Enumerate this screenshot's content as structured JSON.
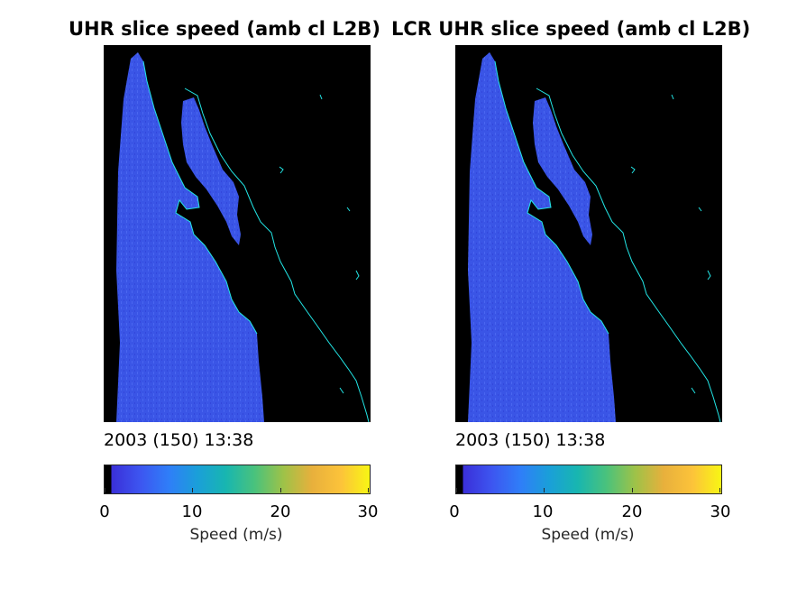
{
  "panels": [
    {
      "title": "UHR slice speed (amb cl L2B)",
      "timestamp": "2003 (150) 13:38",
      "colorbar": {
        "label": "Speed (m/s)",
        "ticks": [
          "0",
          "10",
          "20",
          "30"
        ]
      }
    },
    {
      "title": "LCR UHR slice speed (amb cl L2B)",
      "timestamp": "2003 (150) 13:38",
      "colorbar": {
        "label": "Speed (m/s)",
        "ticks": [
          "0",
          "10",
          "20",
          "30"
        ]
      }
    }
  ],
  "colors": {
    "background": "#000000",
    "ocean_speed": "#3a55e6",
    "coastline": "#22e6e6",
    "colormap": [
      "#000000",
      "#3a2fd8",
      "#3d55f0",
      "#2f7ef8",
      "#1a9fd9",
      "#18b6b0",
      "#4ac27c",
      "#9ec248",
      "#e8b03c",
      "#fcc33a",
      "#f8f614"
    ]
  },
  "chart_data": [
    {
      "type": "heatmap",
      "title": "UHR slice speed (amb cl L2B)",
      "xlabel": "2003 (150) 13:38",
      "colorbar_label": "Speed (m/s)",
      "clim": [
        0,
        30
      ],
      "colorbar_ticks": [
        0,
        10,
        20,
        30
      ],
      "dominant_value_ocean": 5,
      "land_value": 0
    },
    {
      "type": "heatmap",
      "title": "LCR UHR slice speed (amb cl L2B)",
      "xlabel": "2003 (150) 13:38",
      "colorbar_label": "Speed (m/s)",
      "clim": [
        0,
        30
      ],
      "colorbar_ticks": [
        0,
        10,
        20,
        30
      ],
      "dominant_value_ocean": 5,
      "land_value": 0
    }
  ]
}
